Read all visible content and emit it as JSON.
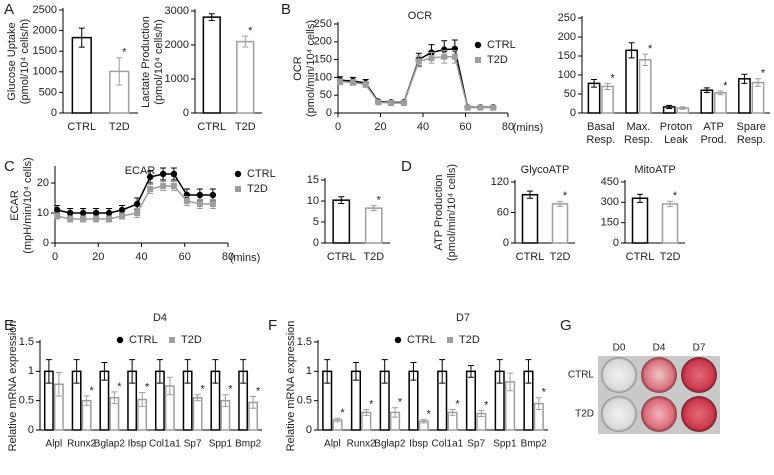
{
  "panel_labels": [
    "A",
    "B",
    "C",
    "D",
    "E",
    "F",
    "G"
  ],
  "chart_data": [
    {
      "type": "bar",
      "y_label": [
        "Glucose Uptake",
        "(pmol/10⁴ cells/h)"
      ],
      "categories": [
        "CTRL",
        "T2D"
      ],
      "values": [
        1830,
        1010
      ],
      "errors": [
        230,
        330
      ],
      "colors": [
        "#000000",
        "#9e9e9e"
      ],
      "annotations": [
        null,
        "*"
      ],
      "ylim": [
        0,
        2500
      ],
      "yticks": [
        0,
        500,
        1000,
        1500,
        2000,
        2500
      ]
    },
    {
      "type": "bar",
      "y_label": [
        "Lactate Production",
        "(pmol/10⁴ cells/h)"
      ],
      "categories": [
        "CTRL",
        "T2D"
      ],
      "values": [
        2820,
        2100
      ],
      "errors": [
        100,
        160
      ],
      "colors": [
        "#000000",
        "#9e9e9e"
      ],
      "annotations": [
        null,
        "*"
      ],
      "ylim": [
        0,
        3000
      ],
      "yticks": [
        0,
        1000,
        2000,
        3000
      ]
    },
    {
      "type": "line",
      "title": "OCR",
      "y_label": [
        "OCR",
        "(pmol/min/10⁴ cells)"
      ],
      "x_label": "(mins)",
      "legend": "upper right",
      "x": [
        1,
        7,
        13,
        19,
        25,
        31,
        38,
        44,
        50,
        55,
        61,
        67,
        73
      ],
      "series": [
        {
          "name": "CTRL",
          "color": "#000000",
          "marker": "circle",
          "values": [
            92,
            90,
            84,
            32,
            30,
            30,
            150,
            170,
            178,
            180,
            16,
            16,
            16
          ],
          "errors": [
            10,
            10,
            10,
            4,
            4,
            4,
            18,
            22,
            25,
            25,
            3,
            3,
            3
          ]
        },
        {
          "name": "T2D",
          "color": "#9e9e9e",
          "marker": "square",
          "values": [
            88,
            86,
            80,
            30,
            28,
            28,
            145,
            155,
            158,
            158,
            15,
            15,
            15
          ],
          "errors": [
            8,
            8,
            8,
            3,
            3,
            3,
            15,
            15,
            18,
            18,
            3,
            3,
            3
          ]
        }
      ],
      "xlim": [
        0,
        80
      ],
      "xticks": [
        0,
        20,
        40,
        60,
        80
      ],
      "ylim": [
        0,
        250
      ],
      "yticks": [
        0,
        50,
        100,
        150,
        200,
        250
      ]
    },
    {
      "type": "bar",
      "categories": [
        [
          "Basal",
          "Resp."
        ],
        [
          "Max.",
          "Resp."
        ],
        [
          "Proton",
          "Leak"
        ],
        [
          "ATP",
          "Prod."
        ],
        [
          "Spare",
          "Resp."
        ]
      ],
      "series": [
        {
          "color": "#000000",
          "values": [
            78,
            165,
            16,
            60,
            90
          ],
          "errors": [
            10,
            20,
            4,
            6,
            12
          ]
        },
        {
          "color": "#9e9e9e",
          "values": [
            70,
            140,
            13,
            53,
            80
          ],
          "errors": [
            8,
            15,
            3,
            5,
            10
          ],
          "annotations": [
            "*",
            "*",
            null,
            "*",
            "*"
          ]
        }
      ],
      "ylim": [
        0,
        250
      ],
      "yticks": [
        0,
        50,
        100,
        150,
        200,
        250
      ]
    },
    {
      "type": "line",
      "title": "ECAR",
      "y_label": [
        "ECAR",
        "(mpH/min/10⁴ cells)"
      ],
      "x_label": "(mins)",
      "legend": "upper right",
      "x": [
        1,
        7,
        13,
        19,
        25,
        31,
        38,
        44,
        50,
        55,
        61,
        67,
        73
      ],
      "series": [
        {
          "name": "CTRL",
          "color": "#000000",
          "marker": "circle",
          "values": [
            11,
            10,
            10,
            10,
            10,
            11,
            13,
            22,
            23,
            23,
            16,
            16,
            16
          ],
          "errors": [
            1.5,
            1.5,
            1.5,
            1.5,
            1.5,
            1.5,
            2,
            2,
            2,
            2,
            2,
            2,
            2
          ]
        },
        {
          "name": "T2D",
          "color": "#9e9e9e",
          "marker": "square",
          "values": [
            9,
            8,
            8,
            8,
            8,
            9,
            10,
            18,
            19,
            19,
            14,
            13,
            13
          ],
          "errors": [
            1,
            1,
            1,
            1,
            1,
            1,
            1.5,
            1.5,
            1.5,
            1.5,
            1.5,
            1.5,
            1.5
          ]
        }
      ],
      "xlim": [
        0,
        80
      ],
      "xticks": [
        0,
        20,
        40,
        60,
        80
      ],
      "ylim": [
        0,
        25
      ],
      "yticks": [
        0,
        10,
        20
      ]
    },
    {
      "type": "bar",
      "categories": [
        "CTRL",
        "T2D"
      ],
      "values": [
        10.2,
        8.3
      ],
      "errors": [
        0.8,
        0.6
      ],
      "colors": [
        "#000000",
        "#9e9e9e"
      ],
      "annotations": [
        null,
        "*"
      ],
      "ylim": [
        0,
        15
      ],
      "yticks": [
        0,
        5,
        10,
        15
      ]
    },
    {
      "type": "bar",
      "title": "GlycoATP",
      "y_label": [
        "ATP Production",
        "(pmol/min/10⁴ cells)"
      ],
      "categories": [
        "CTRL",
        "T2D"
      ],
      "values": [
        95,
        77
      ],
      "errors": [
        7,
        5
      ],
      "colors": [
        "#000000",
        "#9e9e9e"
      ],
      "annotations": [
        null,
        "*"
      ],
      "ylim": [
        0,
        120
      ],
      "yticks": [
        0,
        60,
        120
      ]
    },
    {
      "type": "bar",
      "title": "MitoATP",
      "categories": [
        "CTRL",
        "T2D"
      ],
      "values": [
        330,
        288
      ],
      "errors": [
        30,
        20
      ],
      "colors": [
        "#000000",
        "#9e9e9e"
      ],
      "annotations": [
        null,
        "*"
      ],
      "ylim": [
        0,
        450
      ],
      "yticks": [
        0,
        150,
        300,
        450
      ]
    },
    {
      "type": "bar",
      "title": "D4",
      "y_label": [
        "Relative mRNA expression"
      ],
      "legend": "top",
      "categories": [
        "Alpl",
        "Runx2",
        "Bglap2",
        "Ibsp",
        "Col1a1",
        "Sp7",
        "Spp1",
        "Bmp2"
      ],
      "series": [
        {
          "name": "CTRL",
          "color": "#000000",
          "marker": "circle",
          "values": [
            1,
            1,
            1,
            1,
            1,
            1,
            1,
            1
          ],
          "errors": [
            0.2,
            0.2,
            0.15,
            0.2,
            0.2,
            0.2,
            0.2,
            0.2
          ]
        },
        {
          "name": "T2D",
          "color": "#9e9e9e",
          "marker": "square",
          "values": [
            0.78,
            0.5,
            0.55,
            0.52,
            0.75,
            0.55,
            0.5,
            0.47
          ],
          "errors": [
            0.2,
            0.08,
            0.1,
            0.12,
            0.15,
            0.05,
            0.1,
            0.1
          ],
          "annotations": [
            null,
            "*",
            "*",
            "*",
            null,
            "*",
            "*",
            "*"
          ]
        }
      ],
      "ylim": [
        0,
        1.5
      ],
      "yticks": [
        0,
        0.5,
        1,
        1.5
      ]
    },
    {
      "type": "bar",
      "title": "D7",
      "y_label": [
        "Relative mRNA expression"
      ],
      "legend": "top",
      "categories": [
        "Alpl",
        "Runx2",
        "Bglap2",
        "Ibsp",
        "Col1a1",
        "Sp7",
        "Spp1",
        "Bmp2"
      ],
      "series": [
        {
          "name": "CTRL",
          "color": "#000000",
          "marker": "circle",
          "values": [
            1,
            1,
            1,
            1,
            1,
            1,
            1,
            1
          ],
          "errors": [
            0.2,
            0.15,
            0.2,
            0.15,
            0.2,
            0.1,
            0.2,
            0.2
          ]
        },
        {
          "name": "T2D",
          "color": "#9e9e9e",
          "marker": "square",
          "values": [
            0.17,
            0.3,
            0.3,
            0.15,
            0.3,
            0.28,
            0.82,
            0.45
          ],
          "errors": [
            0.03,
            0.05,
            0.08,
            0.03,
            0.05,
            0.05,
            0.15,
            0.1
          ],
          "annotations": [
            "*",
            "*",
            "*",
            "*",
            "*",
            "*",
            null,
            "*"
          ]
        }
      ],
      "ylim": [
        0,
        1.5
      ],
      "yticks": [
        0,
        0.5,
        1,
        1.5
      ]
    }
  ],
  "culture_image": {
    "columns": [
      "D0",
      "D4",
      "D7"
    ],
    "rows": [
      "CTRL",
      "T2D"
    ]
  }
}
